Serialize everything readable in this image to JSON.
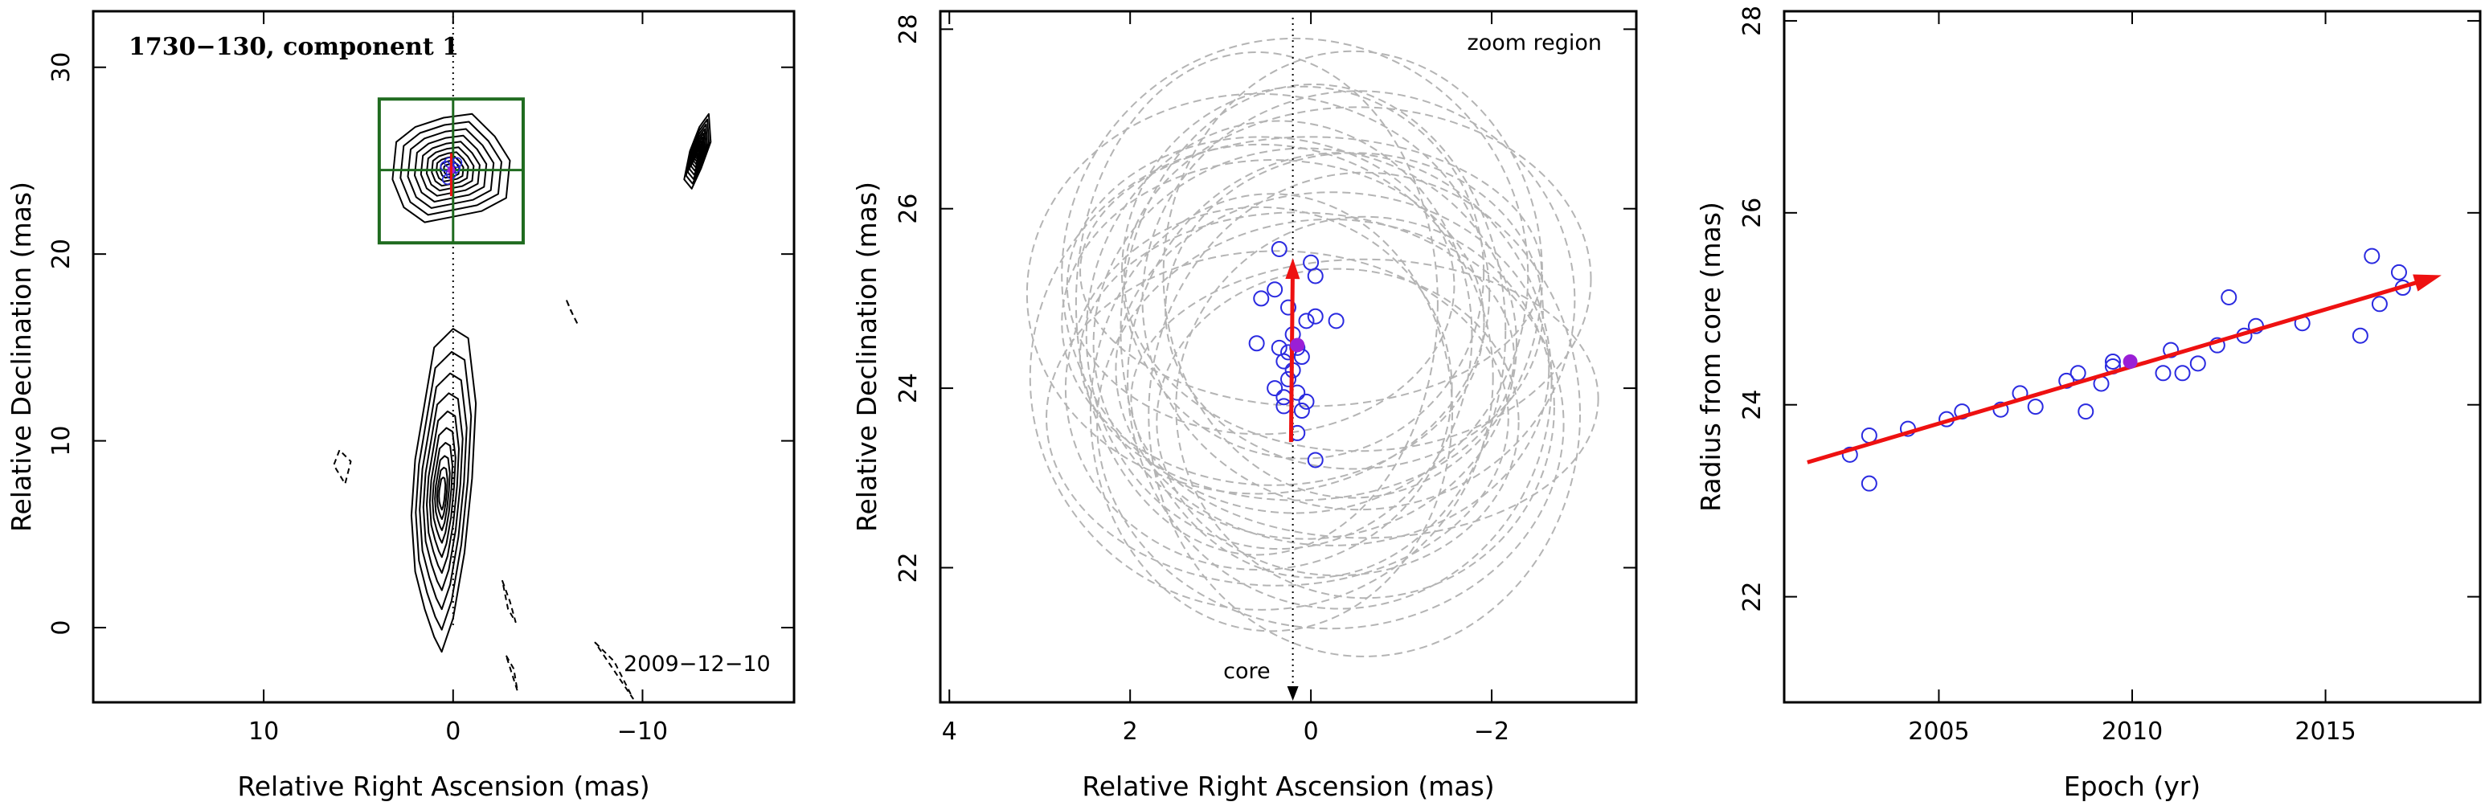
{
  "colors": {
    "axis": "#000000",
    "contour": "#000000",
    "box": "#1f6b1f",
    "points": "#2a2ae0",
    "mean_point": "#9a1fd6",
    "arrow": "#ee1111",
    "beam_ellipses": "#b4b4b4"
  },
  "chart_data": [
    {
      "type": "contour",
      "title": "1730−130, component 1",
      "date_label": "2009−12−10",
      "xlabel": "Relative Right Ascension (mas)",
      "ylabel": "Relative Declination (mas)",
      "xlim": [
        19,
        -18
      ],
      "ylim": [
        -4,
        33
      ],
      "xticks": [
        10,
        0,
        -10
      ],
      "xtick_labels": [
        "10",
        "0",
        "−10"
      ],
      "yticks": [
        0,
        10,
        20,
        30
      ],
      "ytick_labels": [
        "0",
        "10",
        "20",
        "30"
      ],
      "core_position": [
        0,
        0
      ],
      "zoom_box": {
        "ra": [
          3.9,
          -3.7
        ],
        "dec": [
          20.6,
          28.3
        ],
        "crosshair": [
          0,
          24.5
        ]
      },
      "component_points": [
        [
          0.2,
          24.9
        ],
        [
          0.4,
          24.7
        ],
        [
          -0.2,
          24.9
        ],
        [
          0.1,
          24.3
        ],
        [
          0.3,
          24.0
        ],
        [
          -0.1,
          24.6
        ]
      ],
      "mean_position": [
        0.1,
        24.5
      ],
      "contours": [
        {
          "name": "jet-core",
          "ra": [
            1.5,
            2.0,
            2.2,
            2.0,
            1.5,
            1.0,
            0.0,
            -0.8,
            -1.2,
            -1.0,
            -0.6,
            0.0,
            0.6,
            1.0
          ],
          "dec": [
            1.0,
            3.0,
            6.0,
            9.0,
            12.0,
            15.0,
            16.0,
            15.5,
            12.0,
            8.0,
            4.0,
            0.5,
            -1.3,
            -0.5
          ]
        },
        {
          "name": "component",
          "ra": [
            3.0,
            3.2,
            2.6,
            1.5,
            0.0,
            -1.5,
            -2.8,
            -3.0,
            -2.2,
            -1.0,
            0.5,
            2.0
          ],
          "dec": [
            26.0,
            24.0,
            22.5,
            21.7,
            22.0,
            22.3,
            23.0,
            25.0,
            26.3,
            27.5,
            27.3,
            26.8
          ]
        },
        {
          "name": "east-blob",
          "ra": [
            -12.2,
            -12.5,
            -13.0,
            -13.5,
            -13.6,
            -13.1,
            -12.6
          ],
          "dec": [
            24.0,
            25.5,
            26.8,
            27.5,
            26.0,
            24.6,
            23.5
          ]
        },
        {
          "name": "neg-1",
          "ra": [
            6.0,
            6.3,
            5.7,
            5.4
          ],
          "dec": [
            9.5,
            8.7,
            7.7,
            8.9
          ],
          "dashed": true
        },
        {
          "name": "neg-2",
          "ra": [
            -6.0,
            -6.3,
            -6.6,
            -6.2
          ],
          "dec": [
            17.5,
            16.8,
            16.2,
            17.0
          ],
          "dashed": true
        },
        {
          "name": "neg-3",
          "ra": [
            -2.6,
            -3.0,
            -3.3,
            -2.9
          ],
          "dec": [
            2.5,
            1.4,
            0.3,
            1.0
          ],
          "dashed": true
        },
        {
          "name": "neg-4",
          "ra": [
            -2.8,
            -3.2,
            -3.4
          ],
          "dec": [
            -1.5,
            -2.2,
            -3.4
          ],
          "dashed": true
        },
        {
          "name": "neg-5",
          "ra": [
            -7.5,
            -8.5,
            -9.0,
            -9.5
          ],
          "dec": [
            -0.8,
            -1.8,
            -2.8,
            -3.8
          ],
          "dashed": true
        }
      ]
    },
    {
      "type": "scatter",
      "annotation": "zoom region",
      "core_label": "core",
      "xlabel": "Relative Right Ascension (mas)",
      "ylabel": "Relative Declination (mas)",
      "xlim": [
        4.1,
        -3.6
      ],
      "ylim": [
        20.5,
        28.2
      ],
      "xticks": [
        4,
        2,
        0,
        -2
      ],
      "xtick_labels": [
        "4",
        "2",
        "0",
        "−2"
      ],
      "yticks": [
        22,
        24,
        26,
        28
      ],
      "ytick_labels": [
        "22",
        "24",
        "26",
        "28"
      ],
      "core_ra": 0.2,
      "points": [
        {
          "ra": 0.35,
          "dec": 25.55
        },
        {
          "ra": 0.0,
          "dec": 25.4
        },
        {
          "ra": -0.05,
          "dec": 25.25
        },
        {
          "ra": 0.4,
          "dec": 25.1
        },
        {
          "ra": 0.55,
          "dec": 25.0
        },
        {
          "ra": 0.25,
          "dec": 24.9
        },
        {
          "ra": -0.05,
          "dec": 24.8
        },
        {
          "ra": 0.05,
          "dec": 24.75
        },
        {
          "ra": -0.28,
          "dec": 24.75
        },
        {
          "ra": 0.2,
          "dec": 24.6
        },
        {
          "ra": 0.6,
          "dec": 24.5
        },
        {
          "ra": 0.35,
          "dec": 24.45
        },
        {
          "ra": 0.15,
          "dec": 24.45
        },
        {
          "ra": 0.25,
          "dec": 24.4
        },
        {
          "ra": 0.1,
          "dec": 24.35
        },
        {
          "ra": 0.3,
          "dec": 24.3
        },
        {
          "ra": 0.2,
          "dec": 24.2
        },
        {
          "ra": 0.25,
          "dec": 24.1
        },
        {
          "ra": 0.4,
          "dec": 24.0
        },
        {
          "ra": 0.15,
          "dec": 23.95
        },
        {
          "ra": 0.3,
          "dec": 23.9
        },
        {
          "ra": 0.05,
          "dec": 23.85
        },
        {
          "ra": 0.3,
          "dec": 23.8
        },
        {
          "ra": 0.1,
          "dec": 23.75
        },
        {
          "ra": 0.15,
          "dec": 23.5
        },
        {
          "ra": -0.05,
          "dec": 23.2
        }
      ],
      "mean_point": {
        "ra": 0.15,
        "dec": 24.48
      },
      "arrow": {
        "from": [
          0.22,
          23.4
        ],
        "to": [
          0.2,
          25.45
        ]
      },
      "beam_ellipses": {
        "count": 26,
        "center_ra_range": [
          0.6,
          -0.6
        ],
        "center_dec_range": [
          23.6,
          25.3
        ],
        "semi_major_ra_range": [
          2.0,
          2.6
        ],
        "semi_minor_dec_range": [
          1.5,
          2.8
        ]
      }
    },
    {
      "type": "scatter",
      "xlabel": "Epoch (yr)",
      "ylabel": "Radius from core (mas)",
      "xlim": [
        2001,
        2019
      ],
      "ylim": [
        20.9,
        28.1
      ],
      "xticks": [
        2005,
        2010,
        2015
      ],
      "xtick_labels": [
        "2005",
        "2010",
        "2015"
      ],
      "yticks": [
        22,
        24,
        26,
        28
      ],
      "ytick_labels": [
        "22",
        "24",
        "26",
        "28"
      ],
      "points": [
        {
          "x": 2002.7,
          "y": 23.48
        },
        {
          "x": 2003.2,
          "y": 23.68
        },
        {
          "x": 2003.2,
          "y": 23.18
        },
        {
          "x": 2004.2,
          "y": 23.75
        },
        {
          "x": 2005.2,
          "y": 23.85
        },
        {
          "x": 2005.6,
          "y": 23.93
        },
        {
          "x": 2006.6,
          "y": 23.95
        },
        {
          "x": 2007.1,
          "y": 24.12
        },
        {
          "x": 2007.5,
          "y": 23.98
        },
        {
          "x": 2008.3,
          "y": 24.25
        },
        {
          "x": 2008.6,
          "y": 24.33
        },
        {
          "x": 2008.8,
          "y": 23.93
        },
        {
          "x": 2009.2,
          "y": 24.22
        },
        {
          "x": 2009.5,
          "y": 24.45
        },
        {
          "x": 2009.5,
          "y": 24.4
        },
        {
          "x": 2010.8,
          "y": 24.33
        },
        {
          "x": 2011.0,
          "y": 24.57
        },
        {
          "x": 2011.3,
          "y": 24.33
        },
        {
          "x": 2011.7,
          "y": 24.43
        },
        {
          "x": 2012.2,
          "y": 24.62
        },
        {
          "x": 2012.5,
          "y": 25.12
        },
        {
          "x": 2012.9,
          "y": 24.72
        },
        {
          "x": 2013.2,
          "y": 24.82
        },
        {
          "x": 2014.4,
          "y": 24.85
        },
        {
          "x": 2015.9,
          "y": 24.72
        },
        {
          "x": 2016.2,
          "y": 25.55
        },
        {
          "x": 2016.4,
          "y": 25.05
        },
        {
          "x": 2016.9,
          "y": 25.38
        },
        {
          "x": 2017.0,
          "y": 25.22
        }
      ],
      "mean_point": {
        "x": 2009.95,
        "y": 24.45
      },
      "fit_line": {
        "x": [
          2001.6,
          2018.0
        ],
        "y": [
          23.4,
          25.35
        ]
      }
    }
  ]
}
